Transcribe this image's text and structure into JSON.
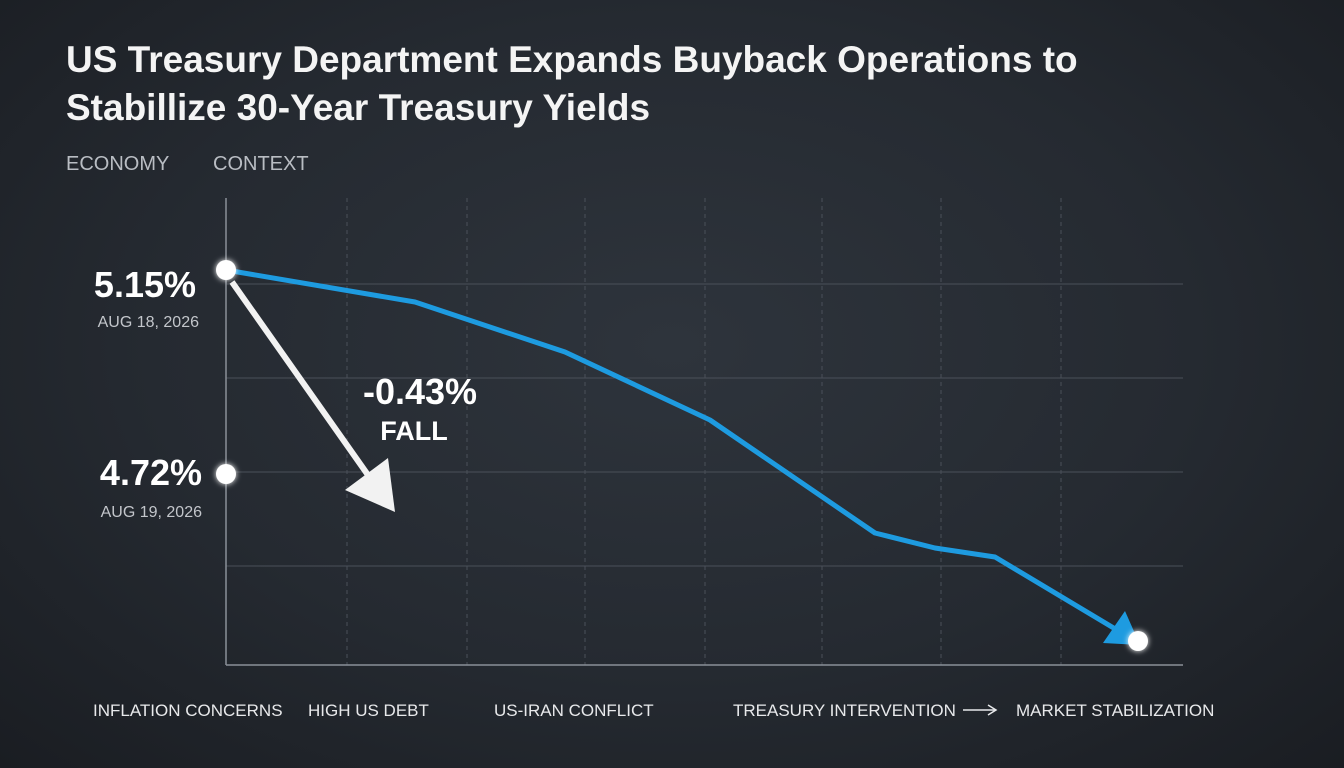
{
  "title": "US Treasury Department Expands Buyback Operations to Stabillize 30-Year Treasury Yields",
  "tags": [
    "ECONOMY",
    "CONTEXT"
  ],
  "points": [
    {
      "value": "5.15%",
      "date": "AUG 18, 2026"
    },
    {
      "value": "4.72%",
      "date": "AUG 19, 2026"
    }
  ],
  "change": {
    "value": "-0.43%",
    "label": "FALL"
  },
  "timeline": [
    "INFLATION CONCERNS",
    "HIGH US DEBT",
    "US-IRAN CONFLICT",
    "TREASURY INTERVENTION",
    "MARKET STABILIZATION"
  ]
}
